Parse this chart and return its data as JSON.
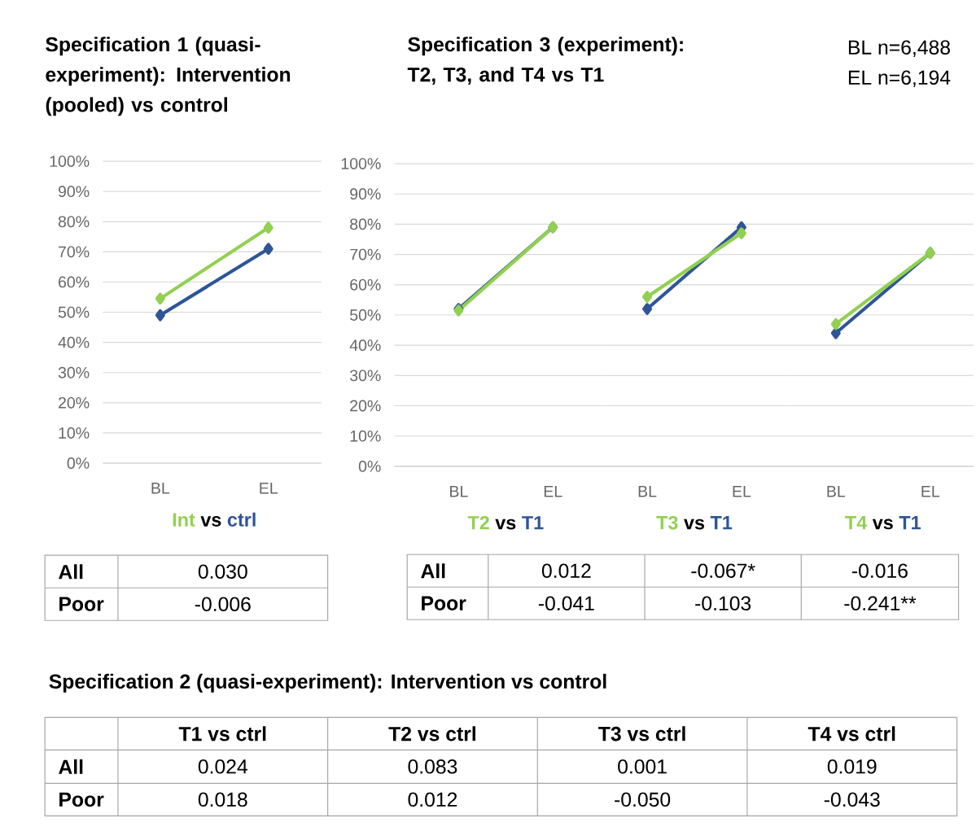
{
  "chart_data": [
    {
      "type": "line",
      "title": "Specification 1 (quasi-experiment): Intervention (pooled) vs control",
      "categories": [
        "BL",
        "EL"
      ],
      "series": [
        {
          "name": "ctrl",
          "color": "#2f5597",
          "values": [
            49,
            71
          ]
        },
        {
          "name": "Int",
          "color": "#92d050",
          "values": [
            54.5,
            78
          ]
        }
      ],
      "ylim": [
        0,
        100
      ],
      "yticks": [
        {
          "value": 0,
          "label": "0%"
        },
        {
          "value": 10,
          "label": "10%"
        },
        {
          "value": 20,
          "label": "20%"
        },
        {
          "value": 30,
          "label": "30%"
        },
        {
          "value": 40,
          "label": "40%"
        },
        {
          "value": 50,
          "label": "50%"
        },
        {
          "value": 60,
          "label": "60%"
        },
        {
          "value": 70,
          "label": "70%"
        },
        {
          "value": 80,
          "label": "80%"
        },
        {
          "value": 90,
          "label": "90%"
        },
        {
          "value": 100,
          "label": "100%"
        }
      ],
      "grid": "y",
      "marker": "diamond",
      "annotations": [
        "vs",
        "All",
        "0.030",
        "Poor",
        "-0.006"
      ]
    },
    {
      "type": "line",
      "title": "Specification 3 (experiment): T2, T3, and T4 vs T1",
      "categories": [
        "BL",
        "EL"
      ],
      "series": [
        {
          "name": "T1",
          "color": "#2f5597",
          "values": [
            52,
            79
          ]
        },
        {
          "name": "T2",
          "color": "#92d050",
          "values": [
            51.5,
            79
          ]
        }
      ],
      "ylim": [
        0,
        100
      ],
      "yticks": [
        {
          "value": 0,
          "label": "0%"
        },
        {
          "value": 10,
          "label": "10%"
        },
        {
          "value": 20,
          "label": "20%"
        },
        {
          "value": 30,
          "label": "30%"
        },
        {
          "value": 40,
          "label": "40%"
        },
        {
          "value": 50,
          "label": "50%"
        },
        {
          "value": 60,
          "label": "60%"
        },
        {
          "value": 70,
          "label": "70%"
        },
        {
          "value": 80,
          "label": "80%"
        },
        {
          "value": 90,
          "label": "90%"
        },
        {
          "value": 100,
          "label": "100%"
        }
      ],
      "grid": "y",
      "marker": "diamond",
      "annotations": [
        "vs",
        "BL n=6,488",
        "EL n=6,194",
        "All",
        "0.012",
        "-0.067*",
        "-0.016",
        "Poor",
        "-0.041",
        "-0.103",
        "-0.241**"
      ]
    },
    {
      "type": "line",
      "categories": [
        "BL",
        "EL"
      ],
      "series": [
        {
          "name": "T1",
          "color": "#2f5597",
          "values": [
            52,
            79
          ]
        },
        {
          "name": "T3",
          "color": "#92d050",
          "values": [
            56,
            77
          ]
        }
      ],
      "ylim": [
        0,
        100
      ],
      "yticks": [
        0,
        10,
        20,
        30,
        40,
        50,
        60,
        70,
        80,
        90,
        100
      ],
      "tick_labels": "x",
      "grid": "y",
      "marker": "diamond",
      "annotations": [
        "vs"
      ]
    },
    {
      "type": "line",
      "categories": [
        "BL",
        "EL"
      ],
      "series": [
        {
          "name": "T1",
          "color": "#2f5597",
          "values": [
            44,
            70.5
          ]
        },
        {
          "name": "T4",
          "color": "#92d050",
          "values": [
            47,
            70.5
          ]
        }
      ],
      "ylim": [
        0,
        100
      ],
      "yticks": [
        0,
        10,
        20,
        30,
        40,
        50,
        60,
        70,
        80,
        90,
        100
      ],
      "tick_labels": "x",
      "grid": "y",
      "marker": "diamond",
      "annotations": [
        "vs"
      ]
    },
    {
      "type": "other",
      "title": "Specification 2 (quasi-experiment): Intervention vs control",
      "annotations": [
        "T1 vs ctrl",
        "T2 vs ctrl",
        "T3 vs ctrl",
        "T4 vs ctrl",
        "All",
        "0.024",
        "0.083",
        "0.001",
        "0.019",
        "Poor",
        "0.018",
        "0.012",
        "-0.050",
        "-0.043"
      ]
    }
  ]
}
